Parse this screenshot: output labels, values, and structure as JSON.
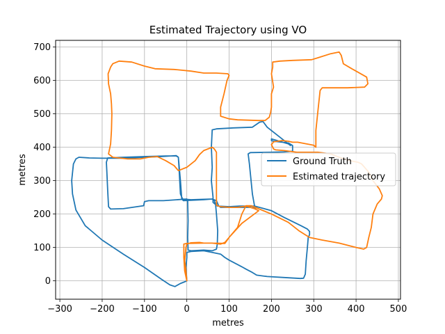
{
  "chart_data": {
    "type": "line",
    "title": "Estimated Trajectory using VO",
    "xlabel": "metres",
    "ylabel": "metres",
    "xlim": [
      -310,
      505
    ],
    "ylim": [
      -55,
      720
    ],
    "xticks": [
      -300,
      -200,
      -100,
      0,
      100,
      200,
      300,
      400,
      500
    ],
    "yticks": [
      0,
      100,
      200,
      300,
      400,
      500,
      600,
      700
    ],
    "xtick_labels": [
      "−300",
      "−200",
      "−100",
      "0",
      "100",
      "200",
      "300",
      "400",
      "500"
    ],
    "ytick_labels": [
      "0",
      "100",
      "200",
      "300",
      "400",
      "500",
      "600",
      "700"
    ],
    "grid": true,
    "legend_position": "center-right",
    "series": [
      {
        "name": "Ground Truth",
        "color": "#1f77b4",
        "points": [
          [
            0,
            0
          ],
          [
            -5,
            -3
          ],
          [
            -15,
            -8
          ],
          [
            -28,
            -17
          ],
          [
            -40,
            -12
          ],
          [
            -60,
            5
          ],
          [
            -100,
            40
          ],
          [
            -150,
            80
          ],
          [
            -200,
            122
          ],
          [
            -240,
            165
          ],
          [
            -262,
            212
          ],
          [
            -270,
            260
          ],
          [
            -272,
            300
          ],
          [
            -268,
            350
          ],
          [
            -262,
            365
          ],
          [
            -255,
            370
          ],
          [
            -230,
            368
          ],
          [
            -200,
            367
          ],
          [
            -150,
            367
          ],
          [
            -100,
            370
          ],
          [
            -60,
            372
          ],
          [
            -25,
            375
          ],
          [
            -20,
            370
          ],
          [
            -15,
            300
          ],
          [
            -12,
            245
          ],
          [
            -8,
            240
          ],
          [
            40,
            243
          ],
          [
            60,
            245
          ],
          [
            65,
            240
          ],
          [
            68,
            230
          ],
          [
            70,
            200
          ],
          [
            73,
            150
          ],
          [
            72,
            110
          ],
          [
            70,
            95
          ],
          [
            60,
            90
          ],
          [
            40,
            92
          ],
          [
            10,
            90
          ],
          [
            3,
            92
          ],
          [
            2,
            130
          ],
          [
            3,
            180
          ],
          [
            2,
            240
          ],
          [
            0,
            245
          ],
          [
            -55,
            240
          ],
          [
            -90,
            240
          ],
          [
            -100,
            237
          ],
          [
            -102,
            225
          ],
          [
            -150,
            216
          ],
          [
            -180,
            215
          ],
          [
            -185,
            222
          ],
          [
            -187,
            270
          ],
          [
            -189,
            330
          ],
          [
            -190,
            355
          ],
          [
            -187,
            368
          ],
          [
            -150,
            370
          ],
          [
            -100,
            372
          ],
          [
            -50,
            374
          ],
          [
            -25,
            374
          ],
          [
            -20,
            370
          ],
          [
            -18,
            330
          ],
          [
            -15,
            260
          ],
          [
            -10,
            245
          ],
          [
            10,
            243
          ],
          [
            60,
            245
          ],
          [
            70,
            240
          ],
          [
            75,
            225
          ],
          [
            80,
            220
          ],
          [
            150,
            220
          ],
          [
            163,
            218
          ],
          [
            160,
            225
          ],
          [
            155,
            260
          ],
          [
            148,
            350
          ],
          [
            145,
            380
          ],
          [
            150,
            384
          ],
          [
            200,
            385
          ],
          [
            230,
            386
          ],
          [
            250,
            388
          ],
          [
            250,
            405
          ],
          [
            240,
            413
          ],
          [
            205,
            418
          ],
          [
            200,
            420
          ],
          [
            200,
            425
          ],
          [
            240,
            410
          ],
          [
            245,
            405
          ],
          [
            225,
            425
          ],
          [
            190,
            460
          ],
          [
            180,
            477
          ],
          [
            172,
            475
          ],
          [
            155,
            460
          ],
          [
            110,
            458
          ],
          [
            70,
            455
          ],
          [
            60,
            452
          ],
          [
            58,
            400
          ],
          [
            60,
            340
          ],
          [
            58,
            300
          ],
          [
            62,
            250
          ],
          [
            62,
            235
          ],
          [
            72,
            224
          ],
          [
            100,
            222
          ],
          [
            125,
            224
          ],
          [
            160,
            224
          ],
          [
            200,
            210
          ],
          [
            230,
            190
          ],
          [
            270,
            165
          ],
          [
            285,
            155
          ],
          [
            290,
            148
          ],
          [
            290,
            138
          ],
          [
            287,
            130
          ],
          [
            285,
            100
          ],
          [
            282,
            60
          ],
          [
            280,
            20
          ],
          [
            276,
            8
          ],
          [
            268,
            7
          ],
          [
            230,
            10
          ],
          [
            190,
            13
          ],
          [
            165,
            17
          ],
          [
            155,
            25
          ],
          [
            140,
            35
          ],
          [
            130,
            42
          ],
          [
            100,
            62
          ],
          [
            90,
            70
          ],
          [
            80,
            80
          ],
          [
            60,
            85
          ],
          [
            40,
            90
          ],
          [
            10,
            88
          ],
          [
            0,
            85
          ],
          [
            0,
            70
          ],
          [
            -2,
            40
          ],
          [
            0,
            0
          ]
        ]
      },
      {
        "name": "Estimated trajectory",
        "color": "#ff7f0e",
        "points": [
          [
            0,
            0
          ],
          [
            -5,
            30
          ],
          [
            -7,
            70
          ],
          [
            -7,
            110
          ],
          [
            0,
            112
          ],
          [
            40,
            113
          ],
          [
            60,
            113
          ],
          [
            80,
            110
          ],
          [
            90,
            115
          ],
          [
            100,
            130
          ],
          [
            120,
            160
          ],
          [
            130,
            200
          ],
          [
            140,
            225
          ],
          [
            152,
            225
          ],
          [
            200,
            200
          ],
          [
            240,
            175
          ],
          [
            265,
            150
          ],
          [
            290,
            130
          ],
          [
            320,
            122
          ],
          [
            360,
            113
          ],
          [
            400,
            100
          ],
          [
            418,
            95
          ],
          [
            425,
            100
          ],
          [
            430,
            130
          ],
          [
            436,
            160
          ],
          [
            440,
            200
          ],
          [
            450,
            230
          ],
          [
            460,
            245
          ],
          [
            462,
            255
          ],
          [
            455,
            275
          ],
          [
            440,
            300
          ],
          [
            430,
            325
          ],
          [
            420,
            340
          ],
          [
            413,
            350
          ],
          [
            405,
            355
          ],
          [
            385,
            360
          ],
          [
            360,
            370
          ],
          [
            340,
            380
          ],
          [
            310,
            385
          ],
          [
            300,
            385
          ],
          [
            260,
            385
          ],
          [
            230,
            390
          ],
          [
            210,
            392
          ],
          [
            205,
            395
          ],
          [
            200,
            408
          ],
          [
            205,
            416
          ],
          [
            225,
            420
          ],
          [
            240,
            418
          ],
          [
            250,
            415
          ],
          [
            262,
            415
          ],
          [
            300,
            406
          ],
          [
            305,
            400
          ],
          [
            305,
            450
          ],
          [
            310,
            510
          ],
          [
            315,
            570
          ],
          [
            320,
            578
          ],
          [
            340,
            578
          ],
          [
            380,
            578
          ],
          [
            420,
            580
          ],
          [
            428,
            590
          ],
          [
            425,
            610
          ],
          [
            400,
            628
          ],
          [
            390,
            635
          ],
          [
            370,
            650
          ],
          [
            365,
            675
          ],
          [
            360,
            685
          ],
          [
            340,
            680
          ],
          [
            310,
            668
          ],
          [
            295,
            662
          ],
          [
            250,
            660
          ],
          [
            220,
            658
          ],
          [
            203,
            655
          ],
          [
            203,
            640
          ],
          [
            200,
            620
          ],
          [
            205,
            580
          ],
          [
            200,
            560
          ],
          [
            200,
            540
          ],
          [
            200,
            520
          ],
          [
            198,
            504
          ],
          [
            195,
            490
          ],
          [
            185,
            480
          ],
          [
            170,
            480
          ],
          [
            120,
            482
          ],
          [
            100,
            485
          ],
          [
            80,
            493
          ],
          [
            80,
            520
          ],
          [
            88,
            560
          ],
          [
            95,
            600
          ],
          [
            100,
            615
          ],
          [
            97,
            620
          ],
          [
            70,
            622
          ],
          [
            40,
            622
          ],
          [
            10,
            628
          ],
          [
            -30,
            633
          ],
          [
            -75,
            635
          ],
          [
            -100,
            643
          ],
          [
            -130,
            655
          ],
          [
            -160,
            658
          ],
          [
            -175,
            650
          ],
          [
            -180,
            640
          ],
          [
            -186,
            620
          ],
          [
            -185,
            590
          ],
          [
            -180,
            560
          ],
          [
            -178,
            530
          ],
          [
            -177,
            500
          ],
          [
            -178,
            450
          ],
          [
            -180,
            410
          ],
          [
            -185,
            380
          ],
          [
            -175,
            370
          ],
          [
            -140,
            365
          ],
          [
            -110,
            365
          ],
          [
            -90,
            370
          ],
          [
            -70,
            372
          ],
          [
            -50,
            360
          ],
          [
            -30,
            345
          ],
          [
            -20,
            330
          ],
          [
            0,
            340
          ],
          [
            20,
            360
          ],
          [
            30,
            378
          ],
          [
            40,
            390
          ],
          [
            60,
            400
          ],
          [
            65,
            395
          ],
          [
            70,
            385
          ],
          [
            70,
            370
          ],
          [
            70,
            340
          ],
          [
            70,
            300
          ],
          [
            70,
            250
          ],
          [
            70,
            226
          ],
          [
            80,
            222
          ],
          [
            100,
            220
          ],
          [
            120,
            220
          ],
          [
            140,
            224
          ],
          [
            160,
            216
          ],
          [
            170,
            210
          ],
          [
            130,
            172
          ],
          [
            100,
            130
          ],
          [
            90,
            112
          ],
          [
            60,
            113
          ],
          [
            40,
            113
          ],
          [
            30,
            115
          ],
          [
            10,
            114
          ],
          [
            0,
            110
          ],
          [
            -2,
            100
          ],
          [
            -5,
            60
          ],
          [
            -2,
            30
          ],
          [
            0,
            0
          ]
        ]
      }
    ]
  }
}
